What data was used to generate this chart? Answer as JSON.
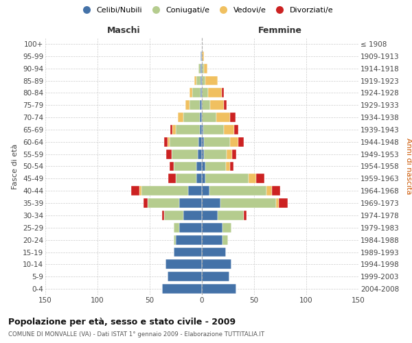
{
  "age_groups": [
    "0-4",
    "5-9",
    "10-14",
    "15-19",
    "20-24",
    "25-29",
    "30-34",
    "35-39",
    "40-44",
    "45-49",
    "50-54",
    "55-59",
    "60-64",
    "65-69",
    "70-74",
    "75-79",
    "80-84",
    "85-89",
    "90-94",
    "95-99",
    "100+"
  ],
  "birth_years": [
    "2004-2008",
    "1999-2003",
    "1994-1998",
    "1989-1993",
    "1984-1988",
    "1979-1983",
    "1974-1978",
    "1969-1973",
    "1964-1968",
    "1959-1963",
    "1954-1958",
    "1949-1953",
    "1944-1948",
    "1939-1943",
    "1934-1938",
    "1929-1933",
    "1924-1928",
    "1919-1923",
    "1914-1918",
    "1909-1913",
    "≤ 1908"
  ],
  "maschi_celibi": [
    38,
    33,
    35,
    27,
    25,
    22,
    18,
    22,
    13,
    5,
    5,
    4,
    3,
    2,
    2,
    2,
    1,
    1,
    1,
    1,
    0
  ],
  "maschi_coniugati": [
    0,
    0,
    0,
    0,
    2,
    5,
    18,
    30,
    45,
    20,
    22,
    25,
    28,
    23,
    16,
    10,
    8,
    4,
    2,
    0,
    0
  ],
  "maschi_vedovi": [
    0,
    0,
    0,
    0,
    0,
    0,
    0,
    0,
    2,
    0,
    0,
    0,
    2,
    3,
    5,
    4,
    3,
    2,
    0,
    0,
    0
  ],
  "maschi_divorziati": [
    0,
    0,
    0,
    0,
    0,
    0,
    2,
    4,
    8,
    7,
    4,
    5,
    3,
    2,
    0,
    0,
    0,
    0,
    0,
    0,
    0
  ],
  "femmine_nubili": [
    33,
    26,
    28,
    23,
    20,
    20,
    15,
    18,
    7,
    3,
    3,
    2,
    2,
    1,
    0,
    0,
    0,
    0,
    0,
    0,
    0
  ],
  "femmine_coniugate": [
    0,
    0,
    0,
    0,
    5,
    8,
    25,
    53,
    55,
    42,
    20,
    22,
    25,
    20,
    14,
    8,
    6,
    3,
    2,
    0,
    0
  ],
  "femmine_vedove": [
    0,
    0,
    0,
    0,
    0,
    0,
    0,
    3,
    5,
    7,
    4,
    5,
    8,
    10,
    13,
    13,
    13,
    12,
    3,
    2,
    0
  ],
  "femmine_divorziate": [
    0,
    0,
    0,
    0,
    0,
    0,
    3,
    8,
    8,
    8,
    3,
    4,
    5,
    4,
    5,
    3,
    2,
    0,
    0,
    0,
    0
  ],
  "colors": {
    "celibi_nubili": "#4472a8",
    "coniugati_e": "#b5cc8e",
    "vedovi_e": "#f0c060",
    "divorziati_e": "#cc2222"
  },
  "xlim": 150,
  "title": "Popolazione per età, sesso e stato civile - 2009",
  "subtitle": "COMUNE DI MONVALLE (VA) - Dati ISTAT 1° gennaio 2009 - Elaborazione TUTTITALIA.IT",
  "header_left": "Maschi",
  "header_right": "Femmine",
  "ylabel_left": "Fasce di età",
  "ylabel_right": "Anni di nascita",
  "legend_labels": [
    "Celibi/Nubili",
    "Coniugati/e",
    "Vedovi/e",
    "Divorziati/e"
  ],
  "bg_color": "#ffffff",
  "grid_color": "#cccccc"
}
